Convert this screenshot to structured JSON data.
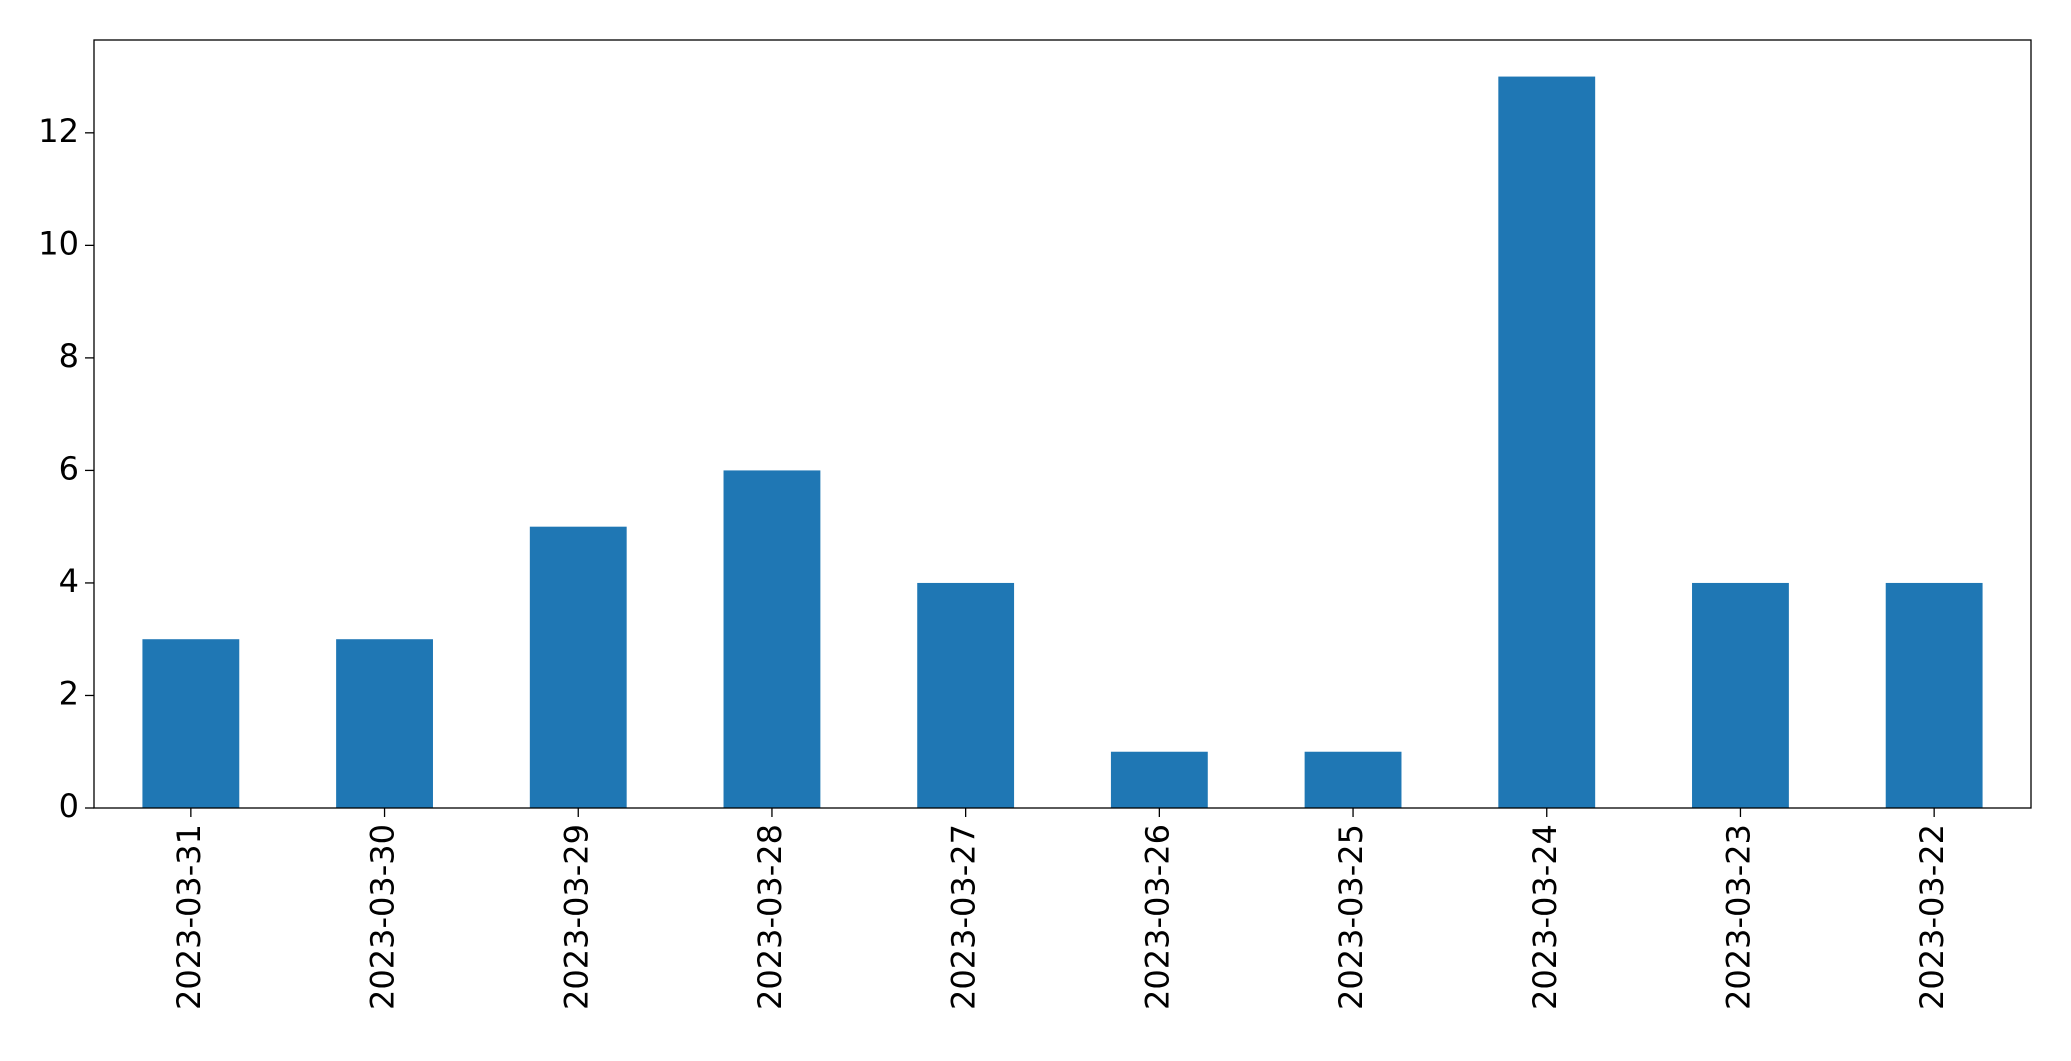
{
  "chart_data": {
    "type": "bar",
    "categories": [
      "2023-03-31",
      "2023-03-30",
      "2023-03-29",
      "2023-03-28",
      "2023-03-27",
      "2023-03-26",
      "2023-03-25",
      "2023-03-24",
      "2023-03-23",
      "2023-03-22"
    ],
    "values": [
      3,
      3,
      5,
      6,
      4,
      1,
      1,
      13,
      4,
      4
    ],
    "color": "#1f77b4",
    "ylim": [
      0,
      13.65
    ],
    "yticks": [
      0,
      2,
      4,
      6,
      8,
      10,
      12
    ],
    "grid": false
  }
}
